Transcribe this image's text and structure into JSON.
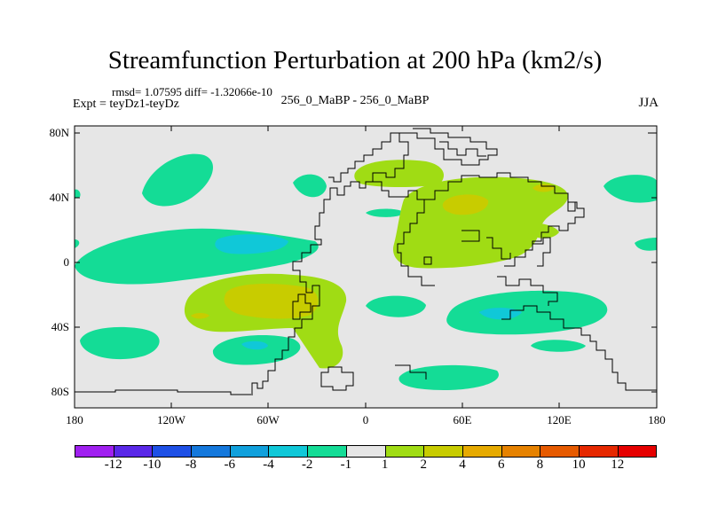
{
  "title": "Streamfunction Perturbation at 200 hPa (km2/s)",
  "stats": "rmsd= 1.07595 diff= -1.32066e-10",
  "experiment": "Expt = teyDz1-teyDz",
  "cases": "256_0_MaBP - 256_0_MaBP",
  "season": "JJA",
  "lat_labels": [
    "80N",
    "40N",
    "0",
    "40S",
    "80S"
  ],
  "lon_labels": [
    "180",
    "120W",
    "60W",
    "0",
    "60E",
    "120E",
    "180"
  ],
  "colorbar": {
    "labels": [
      "-12",
      "-10",
      "-8",
      "-6",
      "-4",
      "-2",
      "-1",
      "1",
      "2",
      "4",
      "6",
      "8",
      "10",
      "12"
    ],
    "colors": [
      "#a020f0",
      "#5a28e8",
      "#1e50e6",
      "#1478dc",
      "#10a0dc",
      "#10c8d8",
      "#14dc96",
      "#e6e6e6",
      "#a0dc14",
      "#c8cc00",
      "#e6aa00",
      "#e68200",
      "#e65a00",
      "#e62800",
      "#e60000"
    ]
  },
  "colors": {
    "land_bg": "#e6e6e6",
    "neg1": "#14dc96",
    "neg2": "#10c8d8",
    "pos1": "#a0dc14",
    "pos2": "#c8cc00"
  }
}
